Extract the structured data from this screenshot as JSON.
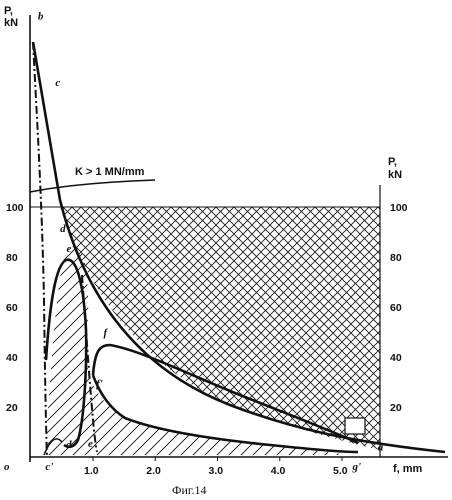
{
  "chart_data": {
    "type": "line",
    "title": "",
    "caption": "Фиг.14",
    "x_axis": {
      "label": "f, mm",
      "ticks": [
        "1.0",
        "2.0",
        "3.0",
        "4.0",
        "5.0"
      ],
      "range": [
        0,
        5.9
      ]
    },
    "y_axis_left": {
      "label_line1": "P,",
      "label_line2": "kN",
      "ticks": [
        "20",
        "40",
        "60",
        "80",
        "100"
      ],
      "range": [
        0,
        180
      ]
    },
    "y_axis_right": {
      "label_line1": "P,",
      "label_line2": "kN",
      "ticks": [
        "20",
        "40",
        "60",
        "80",
        "100"
      ]
    },
    "origin_label": "o",
    "annotation": "K > 1 MN/mm",
    "reference_level": 100,
    "points": [
      {
        "label": "b",
        "x": 0.05,
        "y": 175
      },
      {
        "label": "c",
        "x": 0.3,
        "y": 150
      },
      {
        "label": "c'",
        "x": 0.3,
        "y": 0
      },
      {
        "label": "d'",
        "x": 0.6,
        "y": 90
      },
      {
        "label": "e'",
        "x": 0.8,
        "y": 82
      },
      {
        "label": "d",
        "x": 0.6,
        "y": 2
      },
      {
        "label": "e",
        "x": 0.92,
        "y": 4
      },
      {
        "label": "f",
        "x": 1.2,
        "y": 46
      },
      {
        "label": "f'",
        "x": 1.05,
        "y": 28
      },
      {
        "label": "g",
        "x": 5.2,
        "y": 10
      },
      {
        "label": "g'",
        "x": 5.2,
        "y": 0
      },
      {
        "label": "a",
        "x": 5.8,
        "y": 1
      }
    ],
    "series": [
      {
        "line_style": "solid-bold",
        "x": [
          0.05,
          0.2,
          0.4,
          0.6,
          1.0,
          1.5,
          2.0,
          2.5,
          3.0,
          3.5,
          4.0,
          4.5,
          5.0,
          5.4,
          5.8
        ],
        "y": [
          175,
          150,
          125,
          108,
          88,
          74,
          62,
          52,
          42,
          33,
          25,
          17,
          9,
          4,
          1
        ]
      },
      {
        "line_style": "dash-dot",
        "x": [
          0.05,
          0.15,
          0.25,
          0.3,
          0.33
        ],
        "y": [
          175,
          150,
          80,
          20,
          0
        ]
      },
      {
        "line_style": "solid-bold",
        "x": [
          0.33,
          0.4,
          0.5,
          0.6,
          0.7,
          0.8,
          0.85,
          0.82,
          0.75,
          0.65,
          0.55
        ],
        "y": [
          35,
          75,
          88,
          90,
          86,
          74,
          50,
          28,
          10,
          3,
          2
        ]
      },
      {
        "line_style": "dash-dot",
        "x": [
          0.82,
          0.88,
          0.95,
          1.0
        ],
        "y": [
          82,
          45,
          12,
          4
        ]
      },
      {
        "line_style": "solid-bold",
        "x": [
          0.95,
          1.0,
          1.1,
          1.3,
          1.6,
          2.0,
          2.5,
          3.0,
          3.5,
          4.0,
          4.5,
          5.0,
          5.2
        ],
        "y": [
          30,
          40,
          45,
          44,
          40,
          35,
          29,
          23,
          18,
          13,
          9,
          5,
          3
        ]
      },
      {
        "line_style": "solid-bold",
        "x": [
          0.95,
          1.0,
          1.2,
          1.5,
          2.0,
          2.5,
          3.0,
          3.5,
          4.0,
          4.5,
          5.0,
          5.2
        ],
        "y": [
          28,
          25,
          18,
          13,
          10,
          8,
          6,
          5,
          4,
          3,
          2,
          1
        ]
      }
    ],
    "regions": [
      {
        "pattern": "crosshatch",
        "bounds": "P ≤ 100 kN, above the upper curve, up to f = 5.2"
      },
      {
        "pattern": "diagonal-hatch",
        "bounds": "under the loop c'–d'–e' and the lower branch up to g'"
      }
    ],
    "grid": false,
    "legend": "none"
  }
}
